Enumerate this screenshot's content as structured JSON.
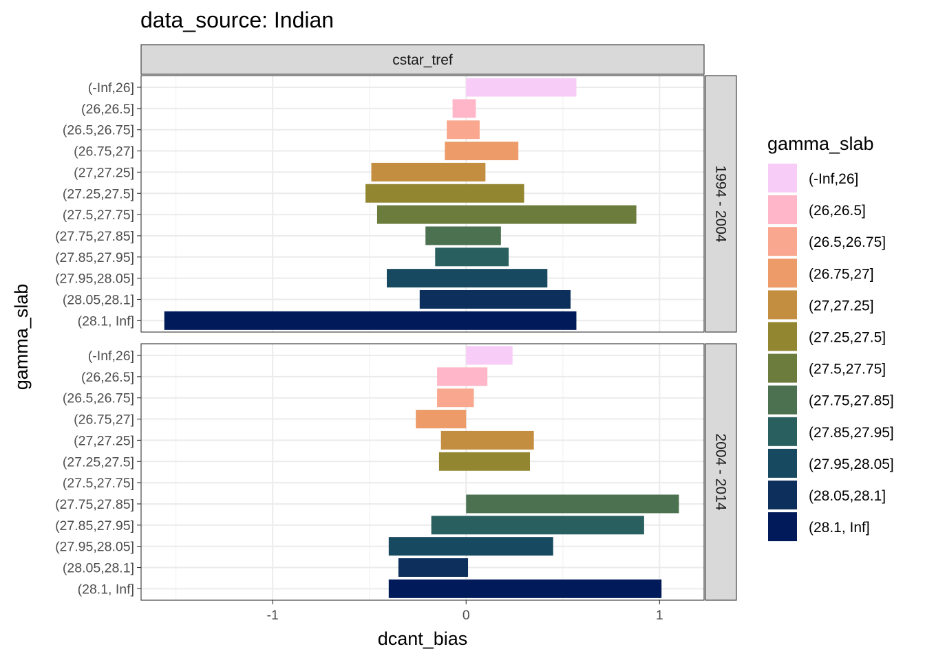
{
  "chart_data": {
    "type": "bar",
    "orientation": "horizontal",
    "title": "data_source: Indian",
    "xlabel": "dcant_bias",
    "ylabel": "gamma_slab",
    "facet_col_label": "cstar_tref",
    "xlim": [
      -1.68,
      1.23
    ],
    "x_ticks": [
      -1,
      0,
      1
    ],
    "x_tick_labels": [
      "-1",
      "0",
      "1"
    ],
    "grid": true,
    "legend": {
      "title": "gamma_slab",
      "position": "right"
    },
    "categories": [
      "(-Inf,26]",
      "(26,26.5]",
      "(26.5,26.75]",
      "(26.75,27]",
      "(27,27.25]",
      "(27.25,27.5]",
      "(27.5,27.75]",
      "(27.75,27.85]",
      "(27.85,27.95]",
      "(27.95,28.05]",
      "(28.05,28.1]",
      "(28.1, Inf]"
    ],
    "colors": [
      "#F7CCF7",
      "#FFB6C8",
      "#F9A78E",
      "#EC9B69",
      "#C48E40",
      "#938630",
      "#6B7C3D",
      "#4B7150",
      "#2A5F5F",
      "#174A60",
      "#0C2F5C",
      "#011A59"
    ],
    "panels": [
      {
        "label": "1994 - 2004",
        "bars": [
          {
            "category": "(-Inf,26]",
            "xmin": 0.0,
            "xmax": 0.57
          },
          {
            "category": "(26,26.5]",
            "xmin": -0.07,
            "xmax": 0.05
          },
          {
            "category": "(26.5,26.75]",
            "xmin": -0.1,
            "xmax": 0.07
          },
          {
            "category": "(26.75,27]",
            "xmin": -0.11,
            "xmax": 0.27
          },
          {
            "category": "(27,27.25]",
            "xmin": -0.49,
            "xmax": 0.1
          },
          {
            "category": "(27.25,27.5]",
            "xmin": -0.52,
            "xmax": 0.3
          },
          {
            "category": "(27.5,27.75]",
            "xmin": -0.46,
            "xmax": 0.88
          },
          {
            "category": "(27.75,27.85]",
            "xmin": -0.21,
            "xmax": 0.18
          },
          {
            "category": "(27.85,27.95]",
            "xmin": -0.16,
            "xmax": 0.22
          },
          {
            "category": "(27.95,28.05]",
            "xmin": -0.41,
            "xmax": 0.42
          },
          {
            "category": "(28.05,28.1]",
            "xmin": -0.24,
            "xmax": 0.54
          },
          {
            "category": "(28.1, Inf]",
            "xmin": -1.56,
            "xmax": 0.57
          }
        ]
      },
      {
        "label": "2004 - 2014",
        "bars": [
          {
            "category": "(-Inf,26]",
            "xmin": 0.0,
            "xmax": 0.24
          },
          {
            "category": "(26,26.5]",
            "xmin": -0.15,
            "xmax": 0.11
          },
          {
            "category": "(26.5,26.75]",
            "xmin": -0.15,
            "xmax": 0.04
          },
          {
            "category": "(26.75,27]",
            "xmin": -0.26,
            "xmax": 0.0
          },
          {
            "category": "(27,27.25]",
            "xmin": -0.13,
            "xmax": 0.35
          },
          {
            "category": "(27.25,27.5]",
            "xmin": -0.14,
            "xmax": 0.33
          },
          {
            "category": "(27.75,27.85]",
            "xmin": 0.0,
            "xmax": 1.1
          },
          {
            "category": "(27.85,27.95]",
            "xmin": -0.18,
            "xmax": 0.92
          },
          {
            "category": "(27.95,28.05]",
            "xmin": -0.4,
            "xmax": 0.45
          },
          {
            "category": "(28.05,28.1]",
            "xmin": -0.35,
            "xmax": 0.01
          },
          {
            "category": "(28.1, Inf]",
            "xmin": -0.4,
            "xmax": 1.01
          }
        ]
      }
    ]
  }
}
